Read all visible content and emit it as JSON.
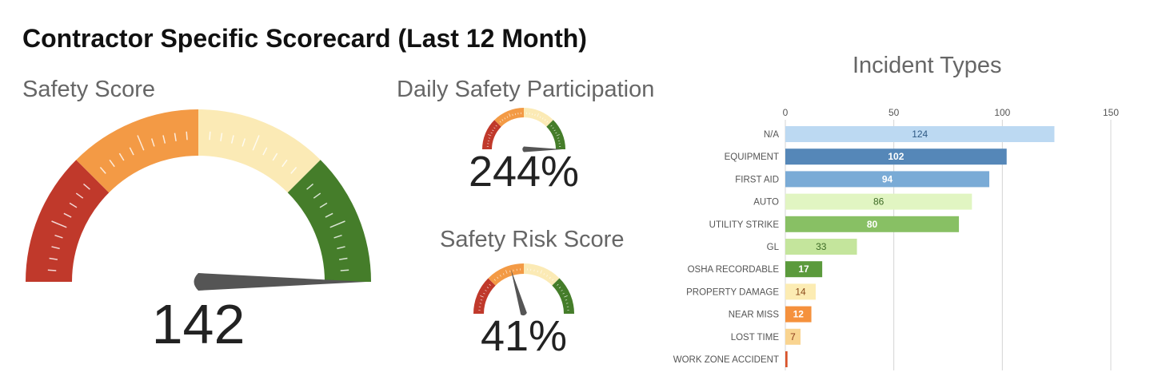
{
  "title": "Contractor Specific Scorecard (Last 12 Month)",
  "gauges": [
    {
      "id": "safety-score",
      "title": "Safety Score",
      "display": "142",
      "fraction": 1.0
    },
    {
      "id": "daily-safety-participation",
      "title": "Daily Safety Participation",
      "display": "244%",
      "fraction": 1.0
    },
    {
      "id": "safety-risk-score",
      "title": "Safety Risk Score",
      "display": "41%",
      "fraction": 0.41
    }
  ],
  "gauge_colors": [
    "#c0392b",
    "#f39a45",
    "#fbeab5",
    "#457d2a"
  ],
  "chart_data": {
    "type": "bar",
    "orientation": "horizontal",
    "title": "Incident Types",
    "categories": [
      "N/A",
      "EQUIPMENT",
      "FIRST AID",
      "AUTO",
      "UTILITY STRIKE",
      "GL",
      "OSHA RECORDABLE",
      "PROPERTY DAMAGE",
      "NEAR MISS",
      "LOST TIME",
      "WORK ZONE ACCIDENT"
    ],
    "values": [
      124,
      102,
      94,
      86,
      80,
      33,
      17,
      14,
      12,
      7,
      1
    ],
    "labels": [
      "124",
      "102",
      "94",
      "86",
      "80",
      "33",
      "17",
      "14",
      "12",
      "7",
      ""
    ],
    "colors": [
      "#bcd9f2",
      "#5587b8",
      "#7aabd6",
      "#e1f5c2",
      "#88c064",
      "#c4e59c",
      "#5b9a3c",
      "#fcecb3",
      "#f5913d",
      "#f9d490",
      "#d9542b"
    ],
    "label_colors": [
      "#2f5a85",
      "#ffffff",
      "#ffffff",
      "#3d6a25",
      "#ffffff",
      "#3d6a25",
      "#ffffff",
      "#8a4a1a",
      "#ffffff",
      "#8a3a1a",
      "#ffffff"
    ],
    "xticks": [
      "0",
      "50",
      "100",
      "150"
    ],
    "xlim": [
      0,
      150
    ],
    "grid": true
  }
}
